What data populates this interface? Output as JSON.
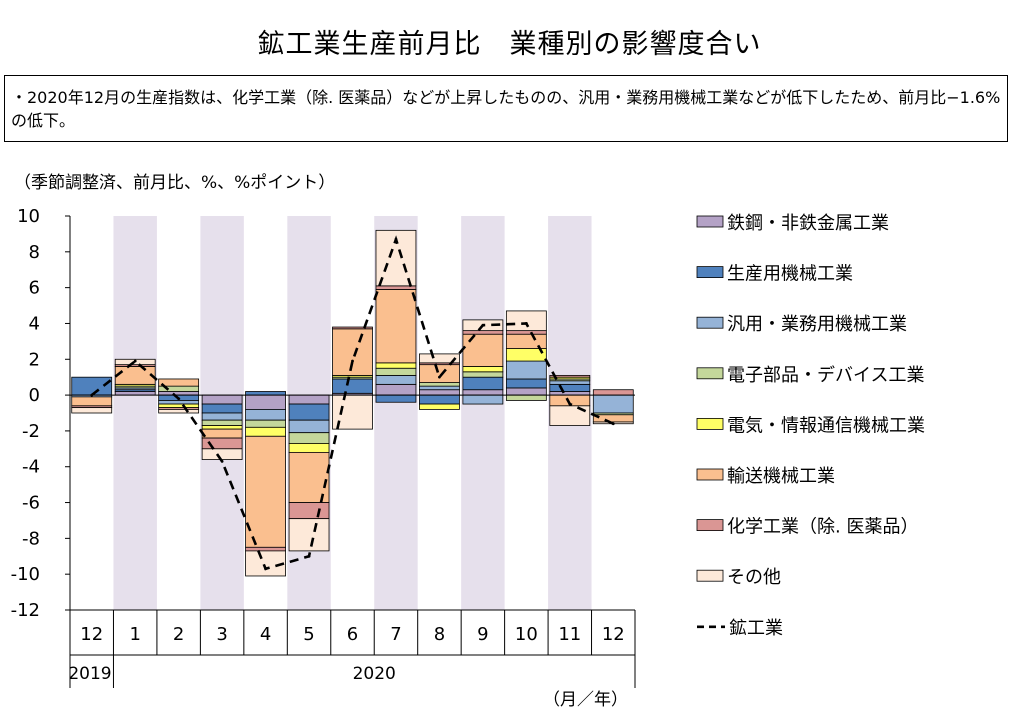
{
  "title": "鉱工業生産前月比　業種別の影響度合い",
  "note": "・2020年12月の生産指数は、化学工業（除. 医薬品）などが上昇したものの、汎用・業務用機械工業などが低下したため、前月比−1.6%の低下。",
  "unit_label": "（季節調整済、前月比、%、%ポイント）",
  "x_axis_unit": "（月／年）",
  "years": [
    {
      "label": "2019",
      "from": 0,
      "to": 0
    },
    {
      "label": "2020",
      "from": 1,
      "to": 12
    }
  ],
  "chart_data": {
    "type": "bar",
    "stacked": true,
    "categories": [
      "12",
      "1",
      "2",
      "3",
      "4",
      "5",
      "6",
      "7",
      "8",
      "9",
      "10",
      "11",
      "12"
    ],
    "ylim": [
      -12,
      10
    ],
    "yticks": [
      10,
      8,
      6,
      4,
      2,
      0,
      -2,
      -4,
      -6,
      -8,
      -10,
      -12
    ],
    "shaded_categories": [
      1,
      3,
      5,
      7,
      9,
      11
    ],
    "shade_color": "#e6e0ec",
    "series": [
      {
        "name": "鉄鋼・非鉄金属工業",
        "color": "#b4a2c6",
        "values": [
          0,
          0.2,
          0.2,
          -0.5,
          -0.8,
          -0.5,
          0.1,
          0.6,
          0.3,
          0.3,
          0.4,
          0.2,
          0
        ]
      },
      {
        "name": "生産用機械工業",
        "color": "#4f81bd",
        "values": [
          1.0,
          0.1,
          -0.3,
          -0.5,
          0.2,
          -0.9,
          0.8,
          -0.4,
          -0.5,
          0.7,
          0.5,
          0.4,
          0
        ]
      },
      {
        "name": "汎用・業務用機械工業",
        "color": "#95b3d7",
        "values": [
          -0.1,
          0.1,
          -0.2,
          -0.4,
          -0.6,
          -0.7,
          0,
          0.5,
          0.2,
          -0.5,
          1.0,
          0.2,
          -1.0
        ]
      },
      {
        "name": "電子部品・デバイス工業",
        "color": "#c4d79b",
        "values": [
          0,
          0.1,
          0.3,
          -0.3,
          -0.4,
          -0.6,
          0.1,
          0.4,
          0.2,
          0.3,
          -0.3,
          0.1,
          -0.1
        ]
      },
      {
        "name": "電気・情報通信機械工業",
        "color": "#ffff66",
        "values": [
          0,
          0.1,
          -0.2,
          -0.2,
          -0.5,
          -0.5,
          0.1,
          0.3,
          -0.3,
          0.3,
          0.7,
          0.1,
          0
        ]
      },
      {
        "name": "輸送機械工業",
        "color": "#fabf8f",
        "values": [
          -0.5,
          1.0,
          0.4,
          -0.5,
          -6.2,
          -2.8,
          2.6,
          4.1,
          1.0,
          1.8,
          0.8,
          -0.6,
          -0.4
        ]
      },
      {
        "name": "化学工業（除. 医薬品）",
        "color": "#da9694",
        "values": [
          -0.1,
          0.1,
          -0.1,
          -0.6,
          -0.2,
          -0.9,
          0.1,
          0.2,
          0.1,
          0.2,
          0.2,
          0.1,
          0.3
        ]
      },
      {
        "name": "その他",
        "color": "#fde9d9",
        "values": [
          -0.3,
          0.3,
          -0.2,
          -0.6,
          -1.4,
          -1.8,
          -1.9,
          3.1,
          0.5,
          0.6,
          1.1,
          -1.1,
          -0.1
        ]
      }
    ],
    "line": {
      "name": "鉱工業",
      "values": [
        0,
        1.9,
        -0.2,
        -3.7,
        -9.7,
        -9.0,
        1.9,
        8.7,
        1.0,
        3.9,
        4.0,
        -0.5,
        -1.6
      ]
    }
  }
}
